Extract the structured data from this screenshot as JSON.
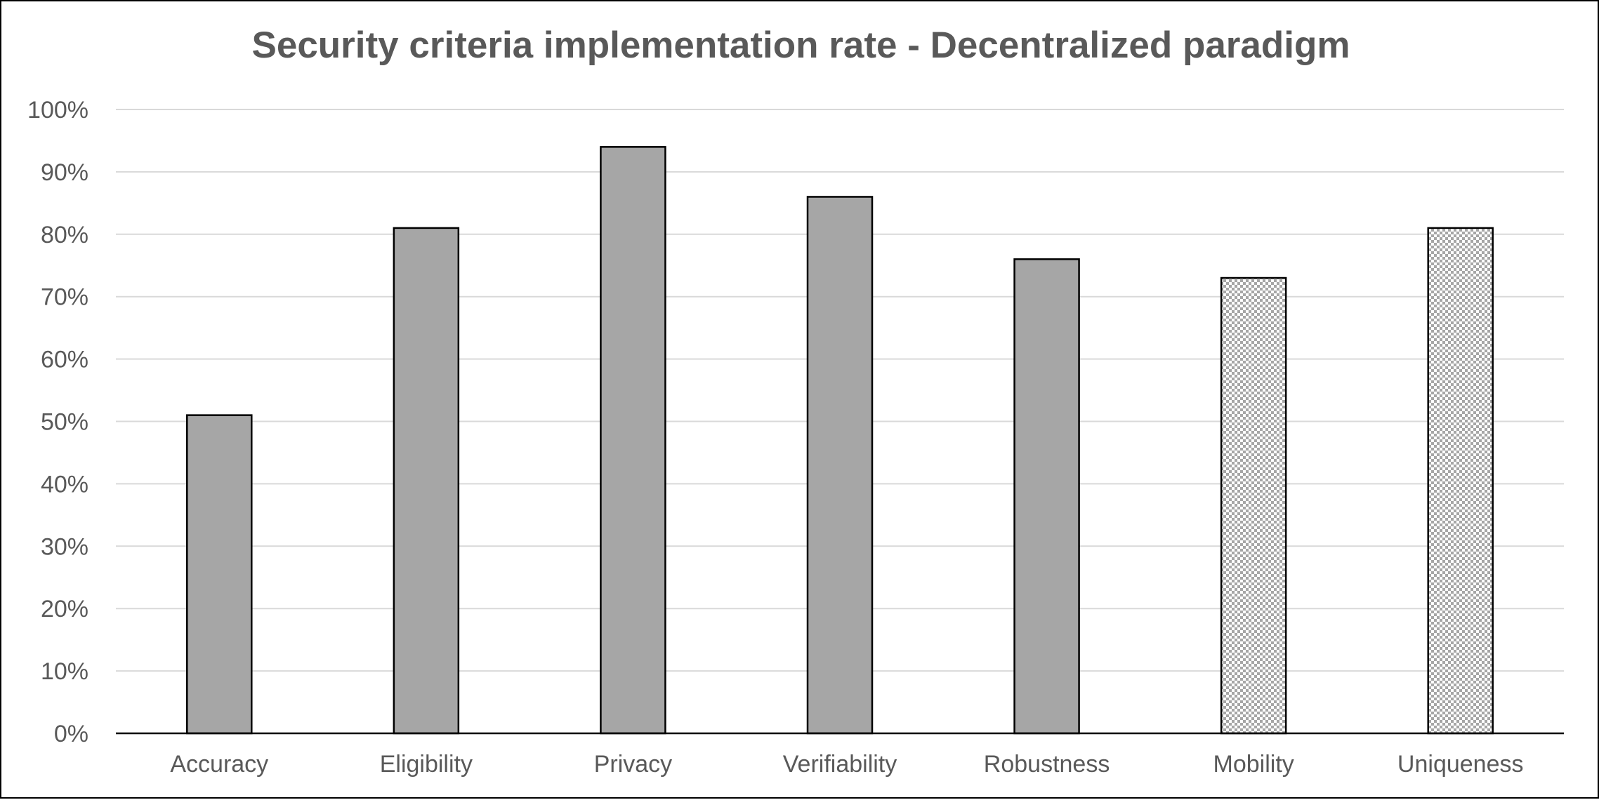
{
  "chart_data": {
    "type": "bar",
    "title": "Security criteria implementation rate - Decentralized paradigm",
    "xlabel": "",
    "ylabel": "",
    "categories": [
      "Accuracy",
      "Eligibility",
      "Privacy",
      "Verifiability",
      "Robustness",
      "Mobility",
      "Uniqueness"
    ],
    "values": [
      0.51,
      0.81,
      0.94,
      0.86,
      0.76,
      0.73,
      0.81
    ],
    "fills": [
      "solid",
      "solid",
      "solid",
      "solid",
      "solid",
      "checkered",
      "checkered"
    ],
    "ylim": [
      0,
      1
    ],
    "yticks": [
      "0%",
      "10%",
      "20%",
      "30%",
      "40%",
      "50%",
      "60%",
      "70%",
      "80%",
      "90%",
      "100%"
    ],
    "grid": true,
    "legend": "none",
    "colors": {
      "bar_fill": "#a6a6a6",
      "bar_border": "#000000",
      "checker_light": "#ffffff",
      "checker_dark": "#a6a6a6",
      "grid": "#d9d9d9",
      "text": "#595959",
      "axis": "#000000"
    }
  }
}
